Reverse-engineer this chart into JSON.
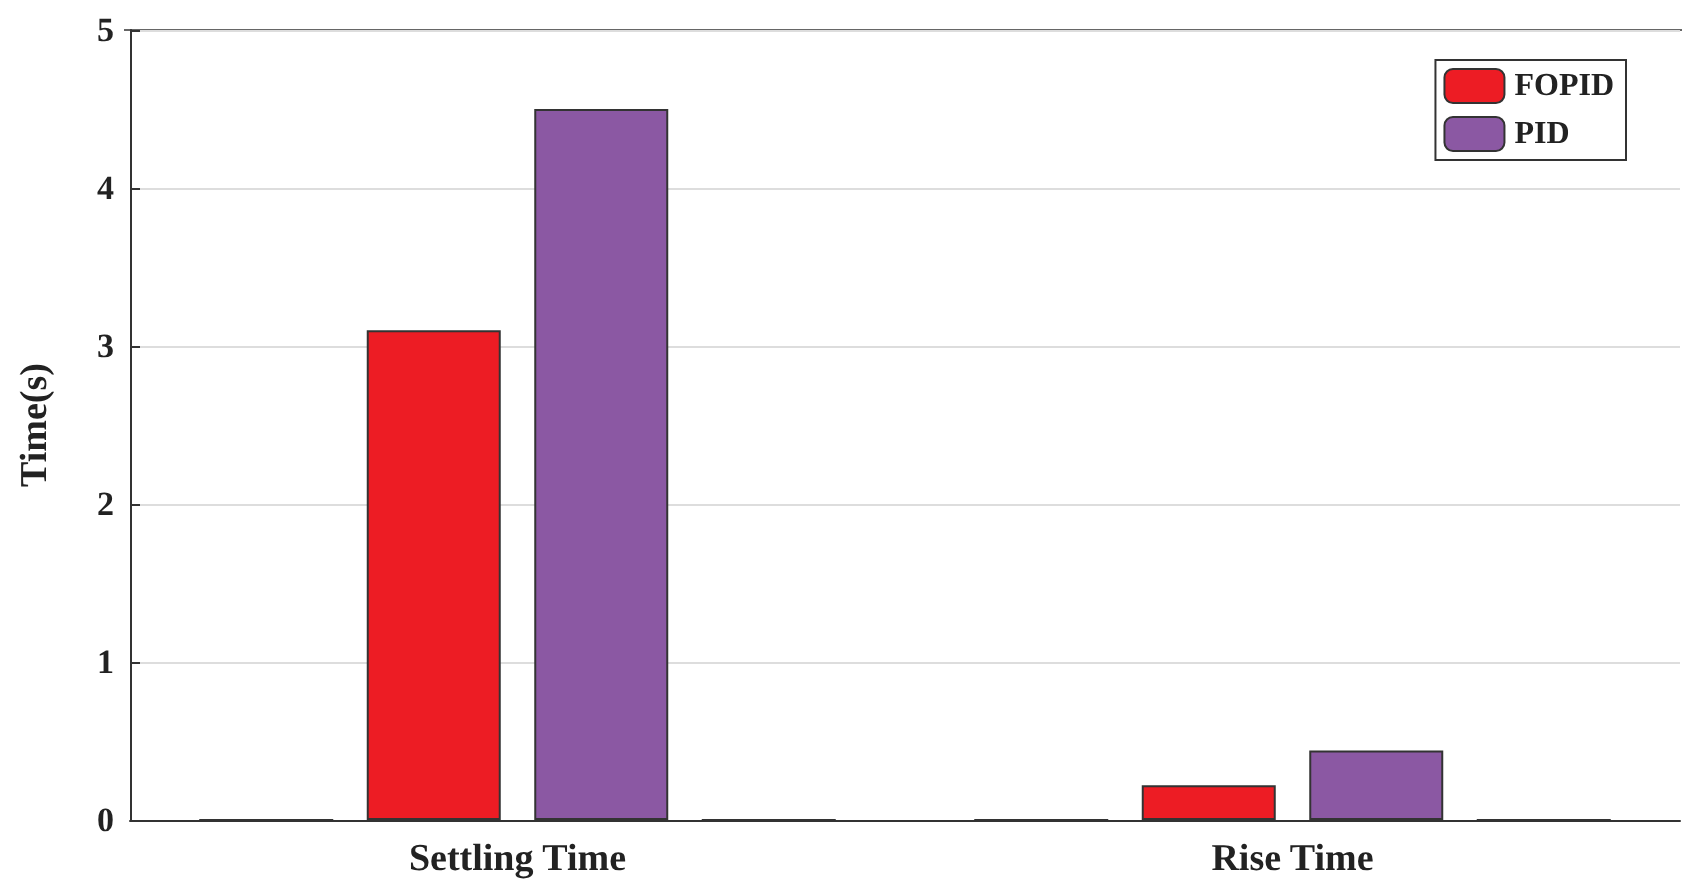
{
  "chart_data": {
    "type": "bar",
    "ylabel": "Time(s)",
    "categories": [
      "Settling Time",
      "Rise Time"
    ],
    "series": [
      {
        "color": "#333333",
        "values": [
          0,
          0
        ]
      },
      {
        "name": "FOPID",
        "color": "#ed1c24",
        "values": [
          3.1,
          0.22
        ]
      },
      {
        "name": "PID",
        "color": "#8b58a3",
        "values": [
          4.5,
          0.44
        ]
      },
      {
        "color": "#333333",
        "values": [
          0,
          0
        ]
      }
    ],
    "ylim": [
      0,
      5
    ],
    "yticks": [
      0,
      1,
      2,
      3,
      4,
      5
    ],
    "grid": "y",
    "legend": "top right"
  }
}
